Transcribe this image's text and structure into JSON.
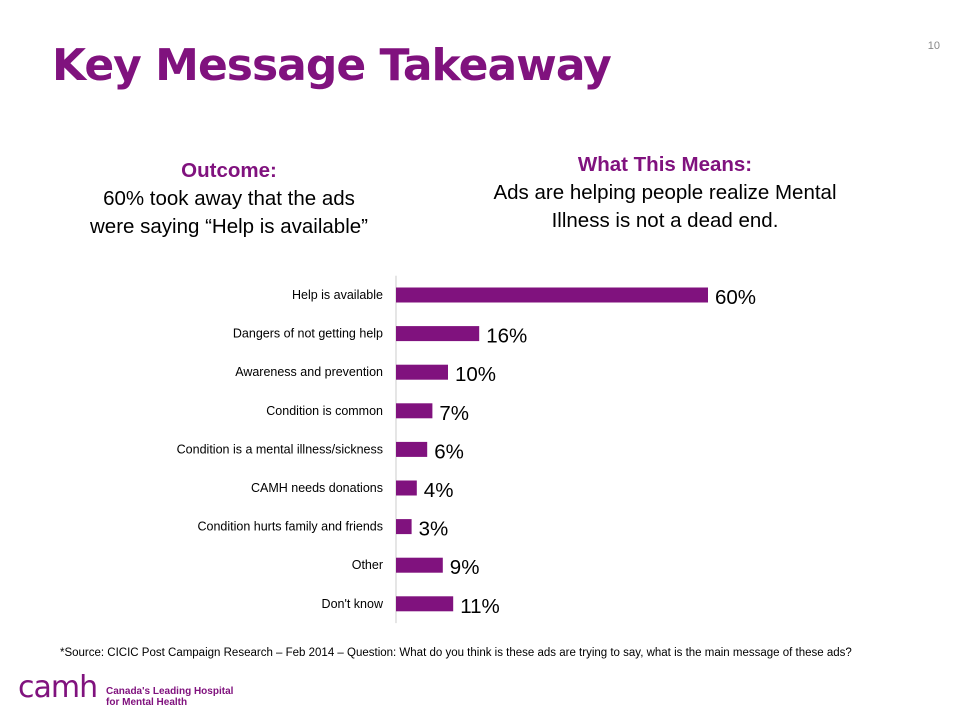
{
  "slide": {
    "title": "Key Message Takeaway",
    "page_number": "10"
  },
  "outcome": {
    "heading": "Outcome:",
    "line1": "60% took away that the ads",
    "line2": "were saying “Help is available”"
  },
  "meaning": {
    "heading": "What This Means:",
    "line1": "Ads are helping people realize Mental",
    "line2": "Illness is not a dead end."
  },
  "chart_data": {
    "type": "bar",
    "orientation": "horizontal",
    "categories": [
      "Help is available",
      "Dangers of not getting help",
      "Awareness and prevention",
      "Condition is common",
      "Condition is a mental illness/sickness",
      "CAMH needs donations",
      "Condition hurts family and friends",
      "Other",
      "Don't know"
    ],
    "values": [
      60,
      16,
      10,
      7,
      6,
      4,
      3,
      9,
      11
    ],
    "data_labels": [
      "60%",
      "16%",
      "10%",
      "7%",
      "6%",
      "4%",
      "3%",
      "9%",
      "11%"
    ],
    "xlim": [
      0,
      60
    ],
    "grid": false,
    "legend": "none",
    "bar_color": "#80127e"
  },
  "footnote": "*Source: CICIC Post Campaign Research – Feb 2014 – Question: What do you think is these ads are trying to say, what is the main message of these ads?",
  "logo": {
    "wordmark": "camh",
    "tagline_line1": "Canada's Leading Hospital",
    "tagline_line2": "for Mental Health"
  },
  "colors": {
    "brand_purple": "#80127e"
  }
}
